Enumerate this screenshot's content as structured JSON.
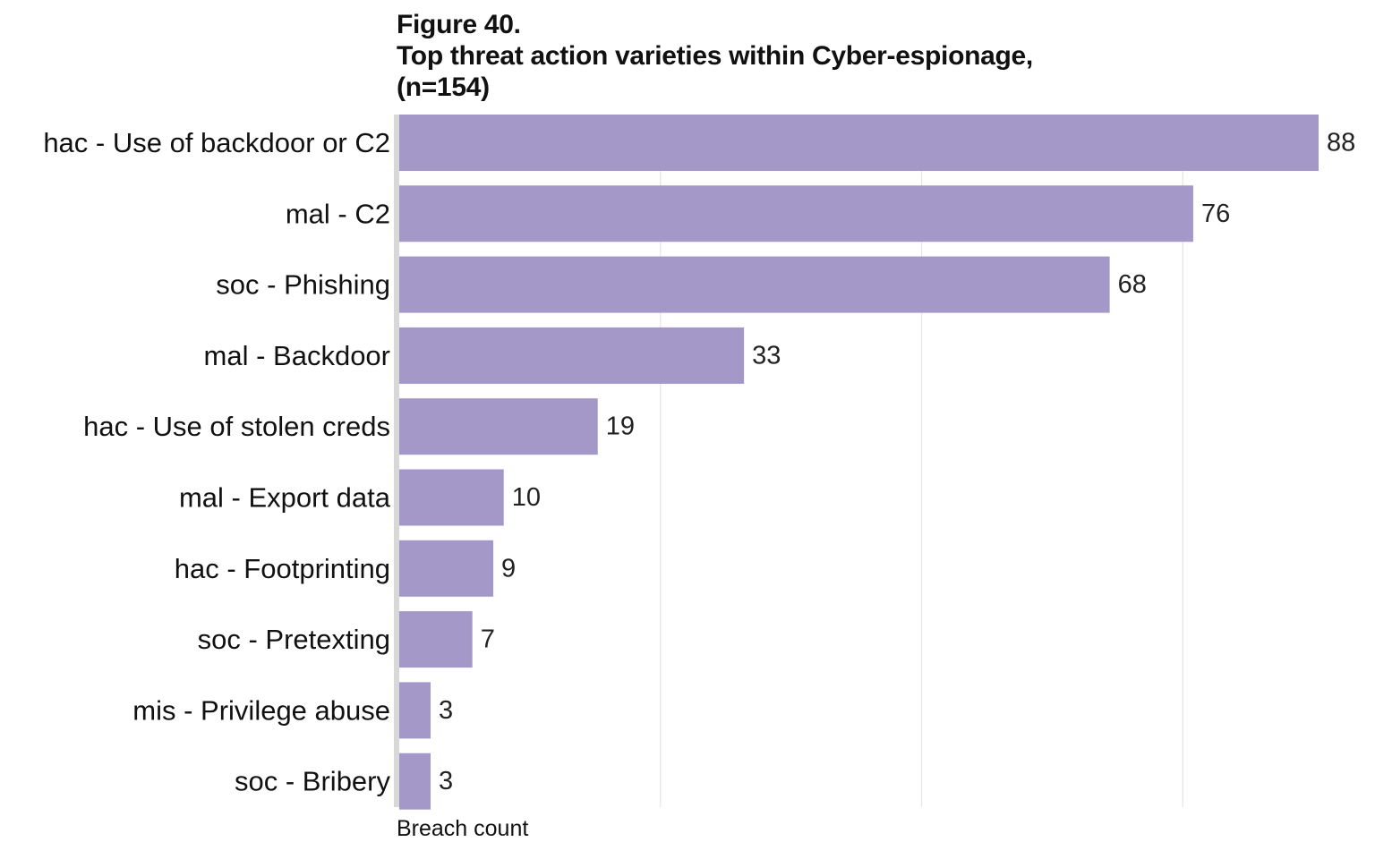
{
  "figure": {
    "label": "Figure 40.",
    "title_line1": "Top threat action varieties within Cyber-espionage,",
    "title_line2": "(n=154)"
  },
  "chart_data": {
    "type": "bar",
    "orientation": "horizontal",
    "categories": [
      "hac - Use of backdoor or C2",
      "mal - C2",
      "soc - Phishing",
      "mal - Backdoor",
      "hac - Use of stolen creds",
      "mal - Export data",
      "hac - Footprinting",
      "soc - Pretexting",
      "mis - Privilege abuse",
      "soc - Bribery"
    ],
    "values": [
      88,
      76,
      68,
      33,
      19,
      10,
      9,
      7,
      3,
      3
    ],
    "xlabel": "Breach count",
    "ylabel": "",
    "xlim": [
      0,
      88
    ],
    "grid": true,
    "data_labels": true,
    "colors": {
      "bar": "#a498c9",
      "grid": "#e4e4e4",
      "axis": "#d8d8d8"
    }
  }
}
